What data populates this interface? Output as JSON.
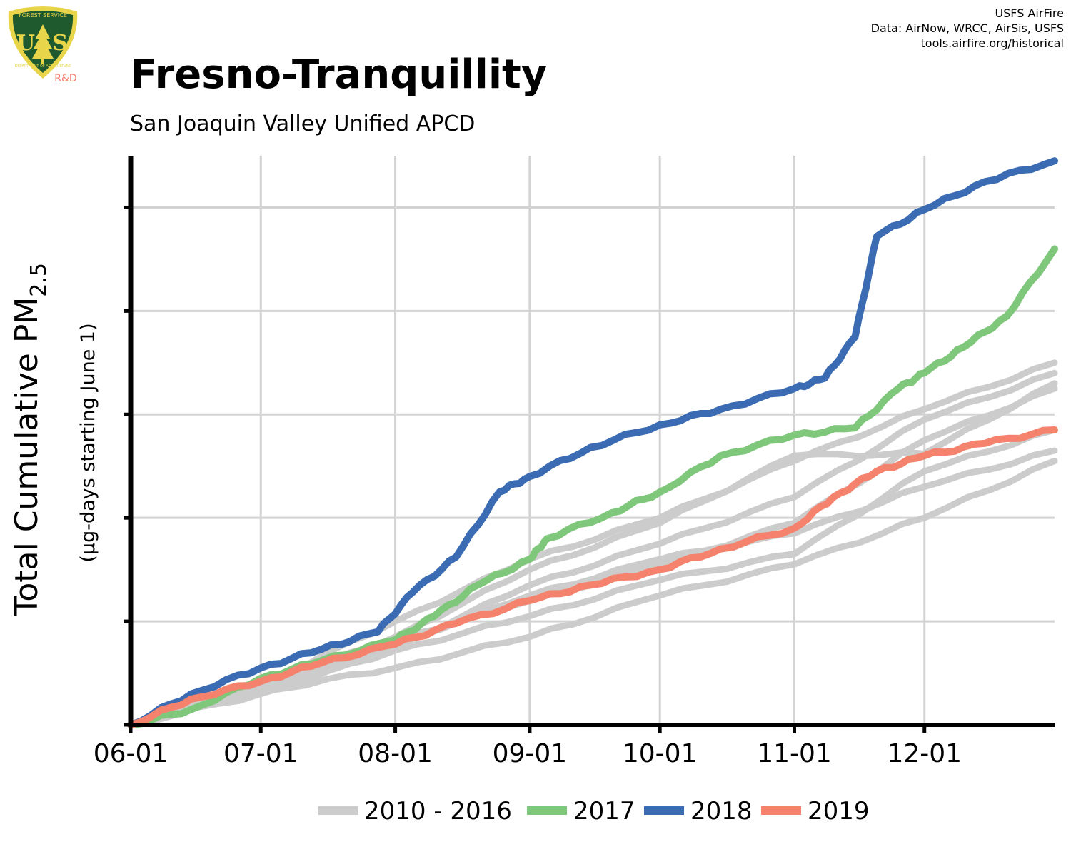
{
  "header": {
    "title": "Fresno-Tranquillity",
    "subtitle": "San Joaquin Valley Unified APCD",
    "credit_1": "USFS AirFire",
    "credit_2": "Data: AirNow, WRCC, AirSis, USFS",
    "credit_3": "tools.airfire.org/historical"
  },
  "logo": {
    "text_left": "U",
    "text_right": "S",
    "ring_top": "FOREST SERVICE",
    "ring_bottom": "DEPARTMENT OF AGRICULTURE",
    "rd_label": "R&D",
    "colors": {
      "shield": "#1f5a2e",
      "rim": "#e8d54a",
      "rd": "#f47b6b"
    }
  },
  "chart_data": {
    "type": "line",
    "title": "",
    "xlabel": "",
    "ylabel_main": "Total Cumulative PM",
    "ylabel_sub": "2.5",
    "ylabel_units": "(µg-days starting June 1)",
    "x_ticks": [
      "06-01",
      "07-01",
      "08-01",
      "09-01",
      "10-01",
      "11-01",
      "12-01"
    ],
    "xlim": [
      "06-01",
      "12-31"
    ],
    "ylim": [
      0,
      5.5
    ],
    "y_ticks_unlabeled": [
      1,
      2,
      3,
      4,
      5
    ],
    "grid": true,
    "legend_position": "bottom",
    "legend": [
      {
        "label": "2010 - 2016",
        "color": "#cccccc"
      },
      {
        "label": "2017",
        "color": "#7fc77b"
      },
      {
        "label": "2018",
        "color": "#3b6cb3"
      },
      {
        "label": "2019",
        "color": "#f5826d"
      }
    ],
    "background_series": [
      {
        "x": [
          "06-01",
          "07-01",
          "08-01",
          "09-01",
          "10-01",
          "11-01",
          "12-01",
          "12-31"
        ],
        "y": [
          0,
          0.38,
          1.0,
          1.6,
          2.0,
          2.55,
          3.05,
          3.5
        ]
      },
      {
        "x": [
          "06-01",
          "07-01",
          "08-01",
          "09-01",
          "10-01",
          "11-01",
          "12-01",
          "12-31"
        ],
        "y": [
          0,
          0.32,
          0.55,
          0.85,
          1.25,
          1.55,
          2.0,
          2.55
        ]
      },
      {
        "x": [
          "06-01",
          "07-01",
          "08-01",
          "09-01",
          "10-01",
          "11-01",
          "12-01",
          "12-31"
        ],
        "y": [
          0,
          0.3,
          0.72,
          1.05,
          1.4,
          1.65,
          2.45,
          2.85
        ]
      },
      {
        "x": [
          "06-01",
          "07-01",
          "08-01",
          "09-01",
          "10-01",
          "11-01",
          "12-01",
          "12-31"
        ],
        "y": [
          0,
          0.36,
          0.85,
          1.5,
          1.95,
          2.6,
          2.62,
          3.3
        ]
      },
      {
        "x": [
          "06-01",
          "07-01",
          "08-01",
          "09-01",
          "10-01",
          "11-01",
          "12-01",
          "12-31"
        ],
        "y": [
          0,
          0.34,
          0.78,
          1.25,
          1.6,
          1.85,
          2.3,
          2.65
        ]
      },
      {
        "x": [
          "06-01",
          "07-01",
          "08-01",
          "09-01",
          "10-01",
          "11-01",
          "12-01",
          "12-31"
        ],
        "y": [
          0,
          0.35,
          0.82,
          1.2,
          1.55,
          1.95,
          2.75,
          3.25
        ]
      },
      {
        "x": [
          "06-01",
          "07-01",
          "08-01",
          "09-01",
          "10-01",
          "11-01",
          "12-01",
          "12-31"
        ],
        "y": [
          0,
          0.33,
          0.75,
          1.35,
          1.75,
          2.2,
          2.95,
          3.4
        ]
      }
    ],
    "series": [
      {
        "name": "2017",
        "color": "#7fc77b",
        "x": [
          "06-01",
          "06-15",
          "07-01",
          "07-15",
          "08-01",
          "08-10",
          "08-20",
          "09-01",
          "09-05",
          "09-20",
          "10-01",
          "10-15",
          "11-01",
          "11-15",
          "11-25",
          "12-01",
          "12-10",
          "12-20",
          "12-31"
        ],
        "y": [
          0,
          0.15,
          0.45,
          0.62,
          0.82,
          1.05,
          1.35,
          1.6,
          1.8,
          2.05,
          2.25,
          2.6,
          2.8,
          2.87,
          3.25,
          3.4,
          3.65,
          3.95,
          4.6
        ]
      },
      {
        "name": "2018",
        "color": "#3b6cb3",
        "x": [
          "06-01",
          "06-15",
          "07-01",
          "07-15",
          "07-28",
          "08-05",
          "08-15",
          "08-25",
          "09-01",
          "09-15",
          "10-01",
          "10-15",
          "11-01",
          "11-08",
          "11-15",
          "11-20",
          "12-01",
          "12-15",
          "12-31"
        ],
        "y": [
          0,
          0.3,
          0.55,
          0.73,
          0.9,
          1.28,
          1.62,
          2.25,
          2.4,
          2.68,
          2.9,
          3.05,
          3.25,
          3.35,
          3.75,
          4.72,
          4.98,
          5.25,
          5.45
        ]
      },
      {
        "name": "2019",
        "color": "#f5826d",
        "x": [
          "06-01",
          "06-15",
          "07-01",
          "07-15",
          "08-01",
          "08-15",
          "09-01",
          "09-15",
          "10-01",
          "10-15",
          "11-01",
          "11-10",
          "11-20",
          "12-01",
          "12-15",
          "12-31"
        ],
        "y": [
          0,
          0.25,
          0.42,
          0.6,
          0.78,
          0.98,
          1.2,
          1.35,
          1.5,
          1.7,
          1.9,
          2.2,
          2.45,
          2.6,
          2.72,
          2.85
        ]
      }
    ]
  }
}
